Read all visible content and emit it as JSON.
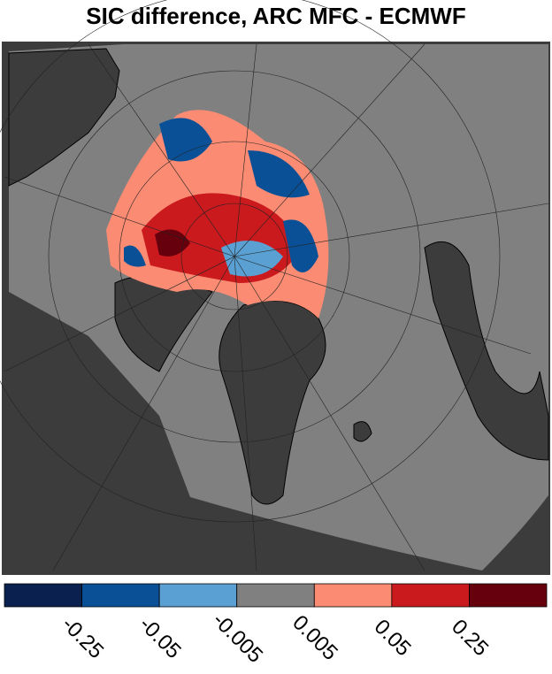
{
  "title": "SIC difference, ARC MFC - ECMWF",
  "colorbar": {
    "colors": [
      "#0a2150",
      "#0a5097",
      "#5aa0d2",
      "#808080",
      "#fb8c73",
      "#cb1a1e",
      "#67000d"
    ],
    "labels": [
      "-0.25",
      "-0.05",
      "-0.005",
      "0.005",
      "0.05",
      "0.25"
    ]
  }
}
